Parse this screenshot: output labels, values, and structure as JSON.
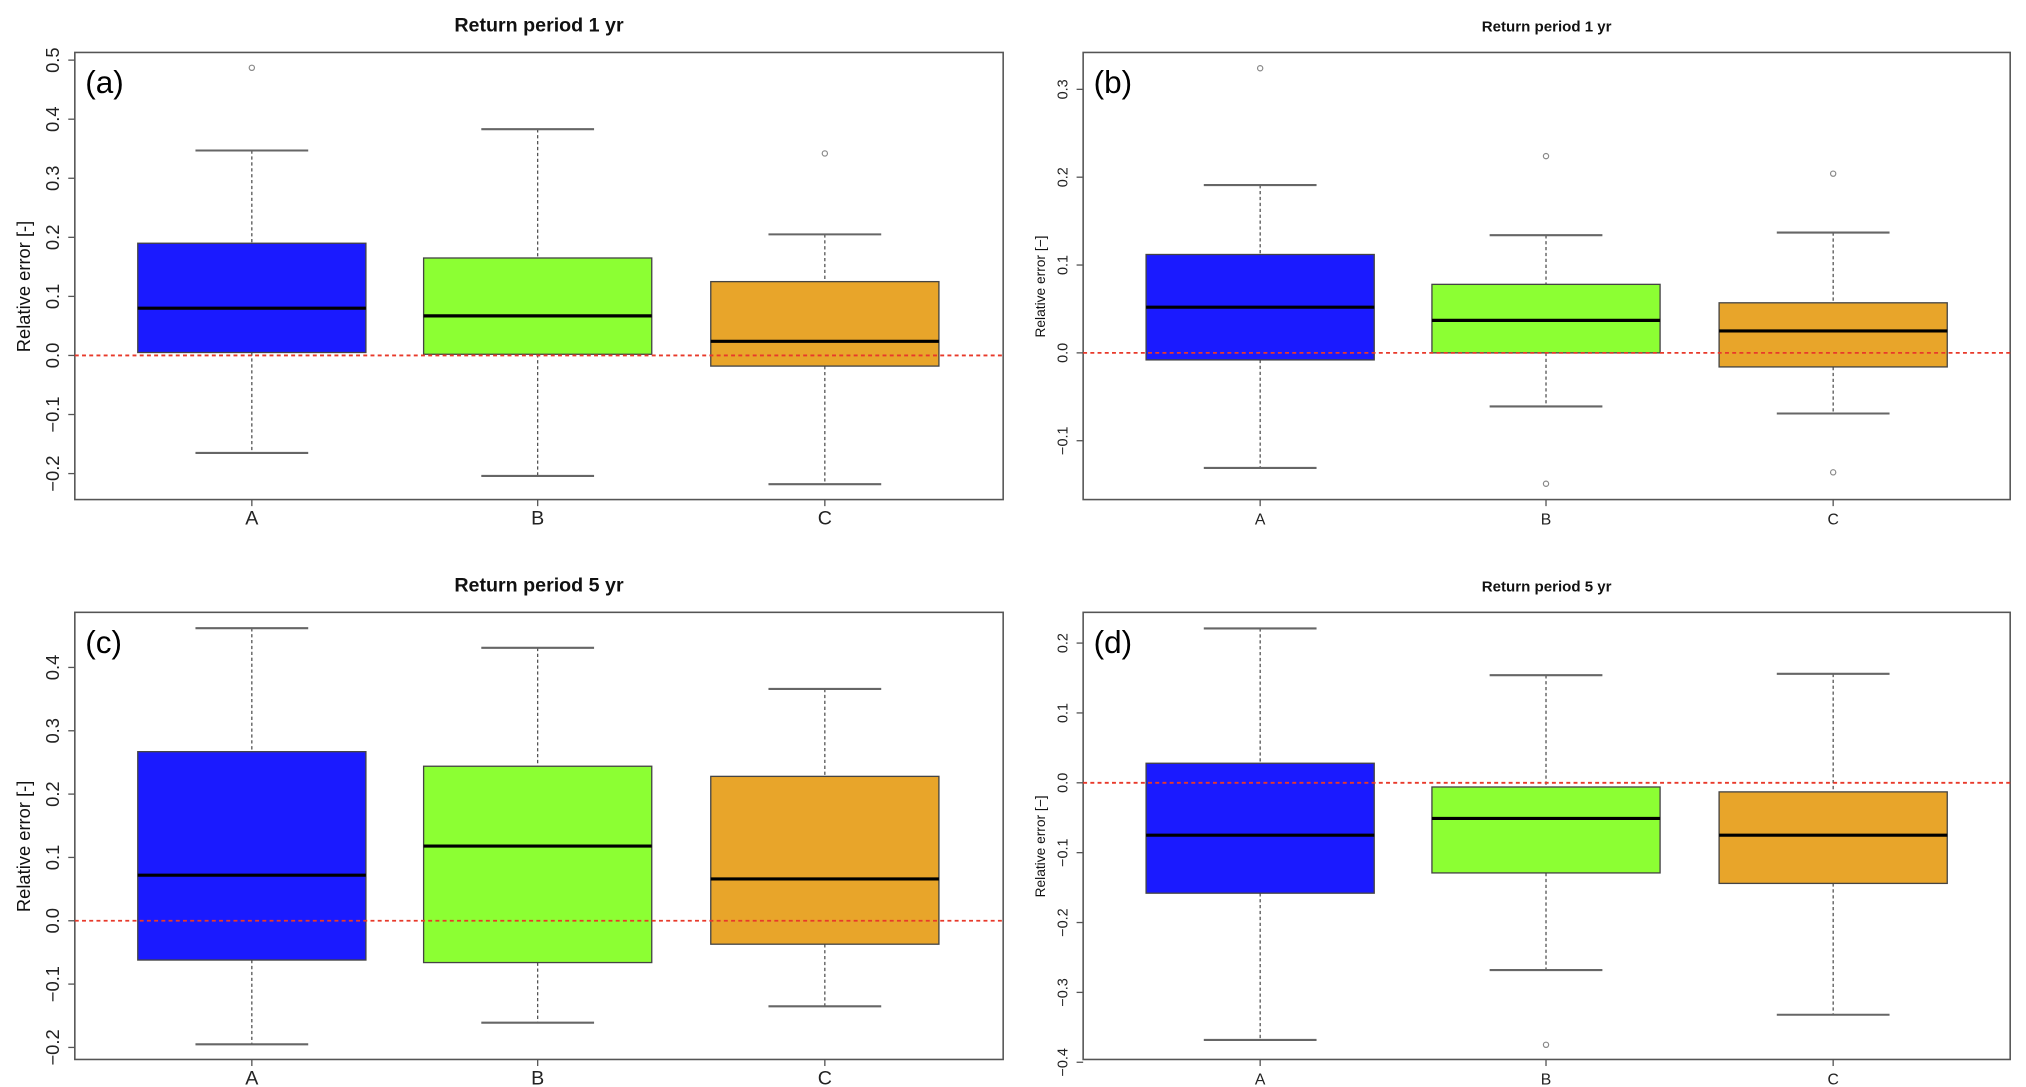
{
  "chart_data": [
    {
      "type": "box",
      "panel_label": "(a)",
      "title": "Return period  1  yr",
      "ylabel": "Relative error [-]",
      "xlabel": "",
      "categories": [
        "A",
        "B",
        "C"
      ],
      "colors": [
        "#1a1aff",
        "#8cff33",
        "#e8a52a"
      ],
      "ylim": [
        -0.244,
        0.513
      ],
      "yticks": [
        -0.2,
        -0.1,
        0.0,
        0.1,
        0.2,
        0.3,
        0.4,
        0.5
      ],
      "ytick_labels": [
        "−0.2",
        "−0.1",
        "0.0",
        "0.1",
        "0.2",
        "0.3",
        "0.4",
        "0.5"
      ],
      "reference_line": 0.0,
      "boxes": [
        {
          "whisker_low": -0.165,
          "q1": 0.005,
          "median": 0.08,
          "q3": 0.19,
          "whisker_high": 0.347,
          "outliers": [
            0.487
          ]
        },
        {
          "whisker_low": -0.204,
          "q1": 0.002,
          "median": 0.067,
          "q3": 0.165,
          "whisker_high": 0.383,
          "outliers": []
        },
        {
          "whisker_low": -0.218,
          "q1": -0.018,
          "median": 0.024,
          "q3": 0.125,
          "whisker_high": 0.205,
          "outliers": [
            0.342
          ]
        }
      ]
    },
    {
      "type": "box",
      "panel_label": "(b)",
      "title": "Return period  1  yr",
      "ylabel": "Relative error [−]",
      "xlabel": "",
      "categories": [
        "A",
        "B",
        "C"
      ],
      "colors": [
        "#1a1aff",
        "#8cff33",
        "#e8a52a"
      ],
      "ylim": [
        -0.167,
        0.342
      ],
      "yticks": [
        -0.1,
        0.0,
        0.1,
        0.2,
        0.3
      ],
      "ytick_labels": [
        "−0.1",
        "0.0",
        "0.1",
        "0.2",
        "0.3"
      ],
      "reference_line": 0.0,
      "boxes": [
        {
          "whisker_low": -0.131,
          "q1": -0.008,
          "median": 0.052,
          "q3": 0.112,
          "whisker_high": 0.191,
          "outliers": [
            0.324
          ]
        },
        {
          "whisker_low": -0.061,
          "q1": 0.0,
          "median": 0.037,
          "q3": 0.078,
          "whisker_high": 0.134,
          "outliers": [
            0.224,
            -0.149
          ]
        },
        {
          "whisker_low": -0.069,
          "q1": -0.016,
          "median": 0.025,
          "q3": 0.057,
          "whisker_high": 0.137,
          "outliers": [
            0.204,
            -0.136
          ]
        }
      ]
    },
    {
      "type": "box",
      "panel_label": "(c)",
      "title": "Return period  5  yr",
      "ylabel": "Relative error [-]",
      "xlabel": "",
      "categories": [
        "A",
        "B",
        "C"
      ],
      "colors": [
        "#1a1aff",
        "#8cff33",
        "#e8a52a"
      ],
      "ylim": [
        -0.219,
        0.487
      ],
      "yticks": [
        -0.2,
        -0.1,
        0.0,
        0.1,
        0.2,
        0.3,
        0.4
      ],
      "ytick_labels": [
        "−0.2",
        "−0.1",
        "0.0",
        "0.1",
        "0.2",
        "0.3",
        "0.4"
      ],
      "reference_line": 0.0,
      "boxes": [
        {
          "whisker_low": -0.195,
          "q1": -0.062,
          "median": 0.072,
          "q3": 0.267,
          "whisker_high": 0.462,
          "outliers": []
        },
        {
          "whisker_low": -0.161,
          "q1": -0.066,
          "median": 0.118,
          "q3": 0.244,
          "whisker_high": 0.431,
          "outliers": []
        },
        {
          "whisker_low": -0.135,
          "q1": -0.037,
          "median": 0.066,
          "q3": 0.228,
          "whisker_high": 0.366,
          "outliers": []
        }
      ]
    },
    {
      "type": "box",
      "panel_label": "(d)",
      "title": "Return period  5  yr",
      "ylabel": "Relative error [−]",
      "xlabel": "",
      "categories": [
        "A",
        "B",
        "C"
      ],
      "colors": [
        "#1a1aff",
        "#8cff33",
        "#e8a52a"
      ],
      "ylim": [
        -0.396,
        0.244
      ],
      "yticks": [
        -0.4,
        -0.3,
        -0.2,
        -0.1,
        0.0,
        0.1,
        0.2
      ],
      "ytick_labels": [
        "−0.4",
        "−0.3",
        "−0.2",
        "−0.1",
        "0.0",
        "0.1",
        "0.2"
      ],
      "reference_line": 0.0,
      "boxes": [
        {
          "whisker_low": -0.368,
          "q1": -0.158,
          "median": -0.075,
          "q3": 0.028,
          "whisker_high": 0.221,
          "outliers": []
        },
        {
          "whisker_low": -0.268,
          "q1": -0.129,
          "median": -0.051,
          "q3": -0.006,
          "whisker_high": 0.154,
          "outliers": [
            -0.375
          ]
        },
        {
          "whisker_low": -0.332,
          "q1": -0.144,
          "median": -0.075,
          "q3": -0.013,
          "whisker_high": 0.156,
          "outliers": []
        }
      ]
    }
  ]
}
